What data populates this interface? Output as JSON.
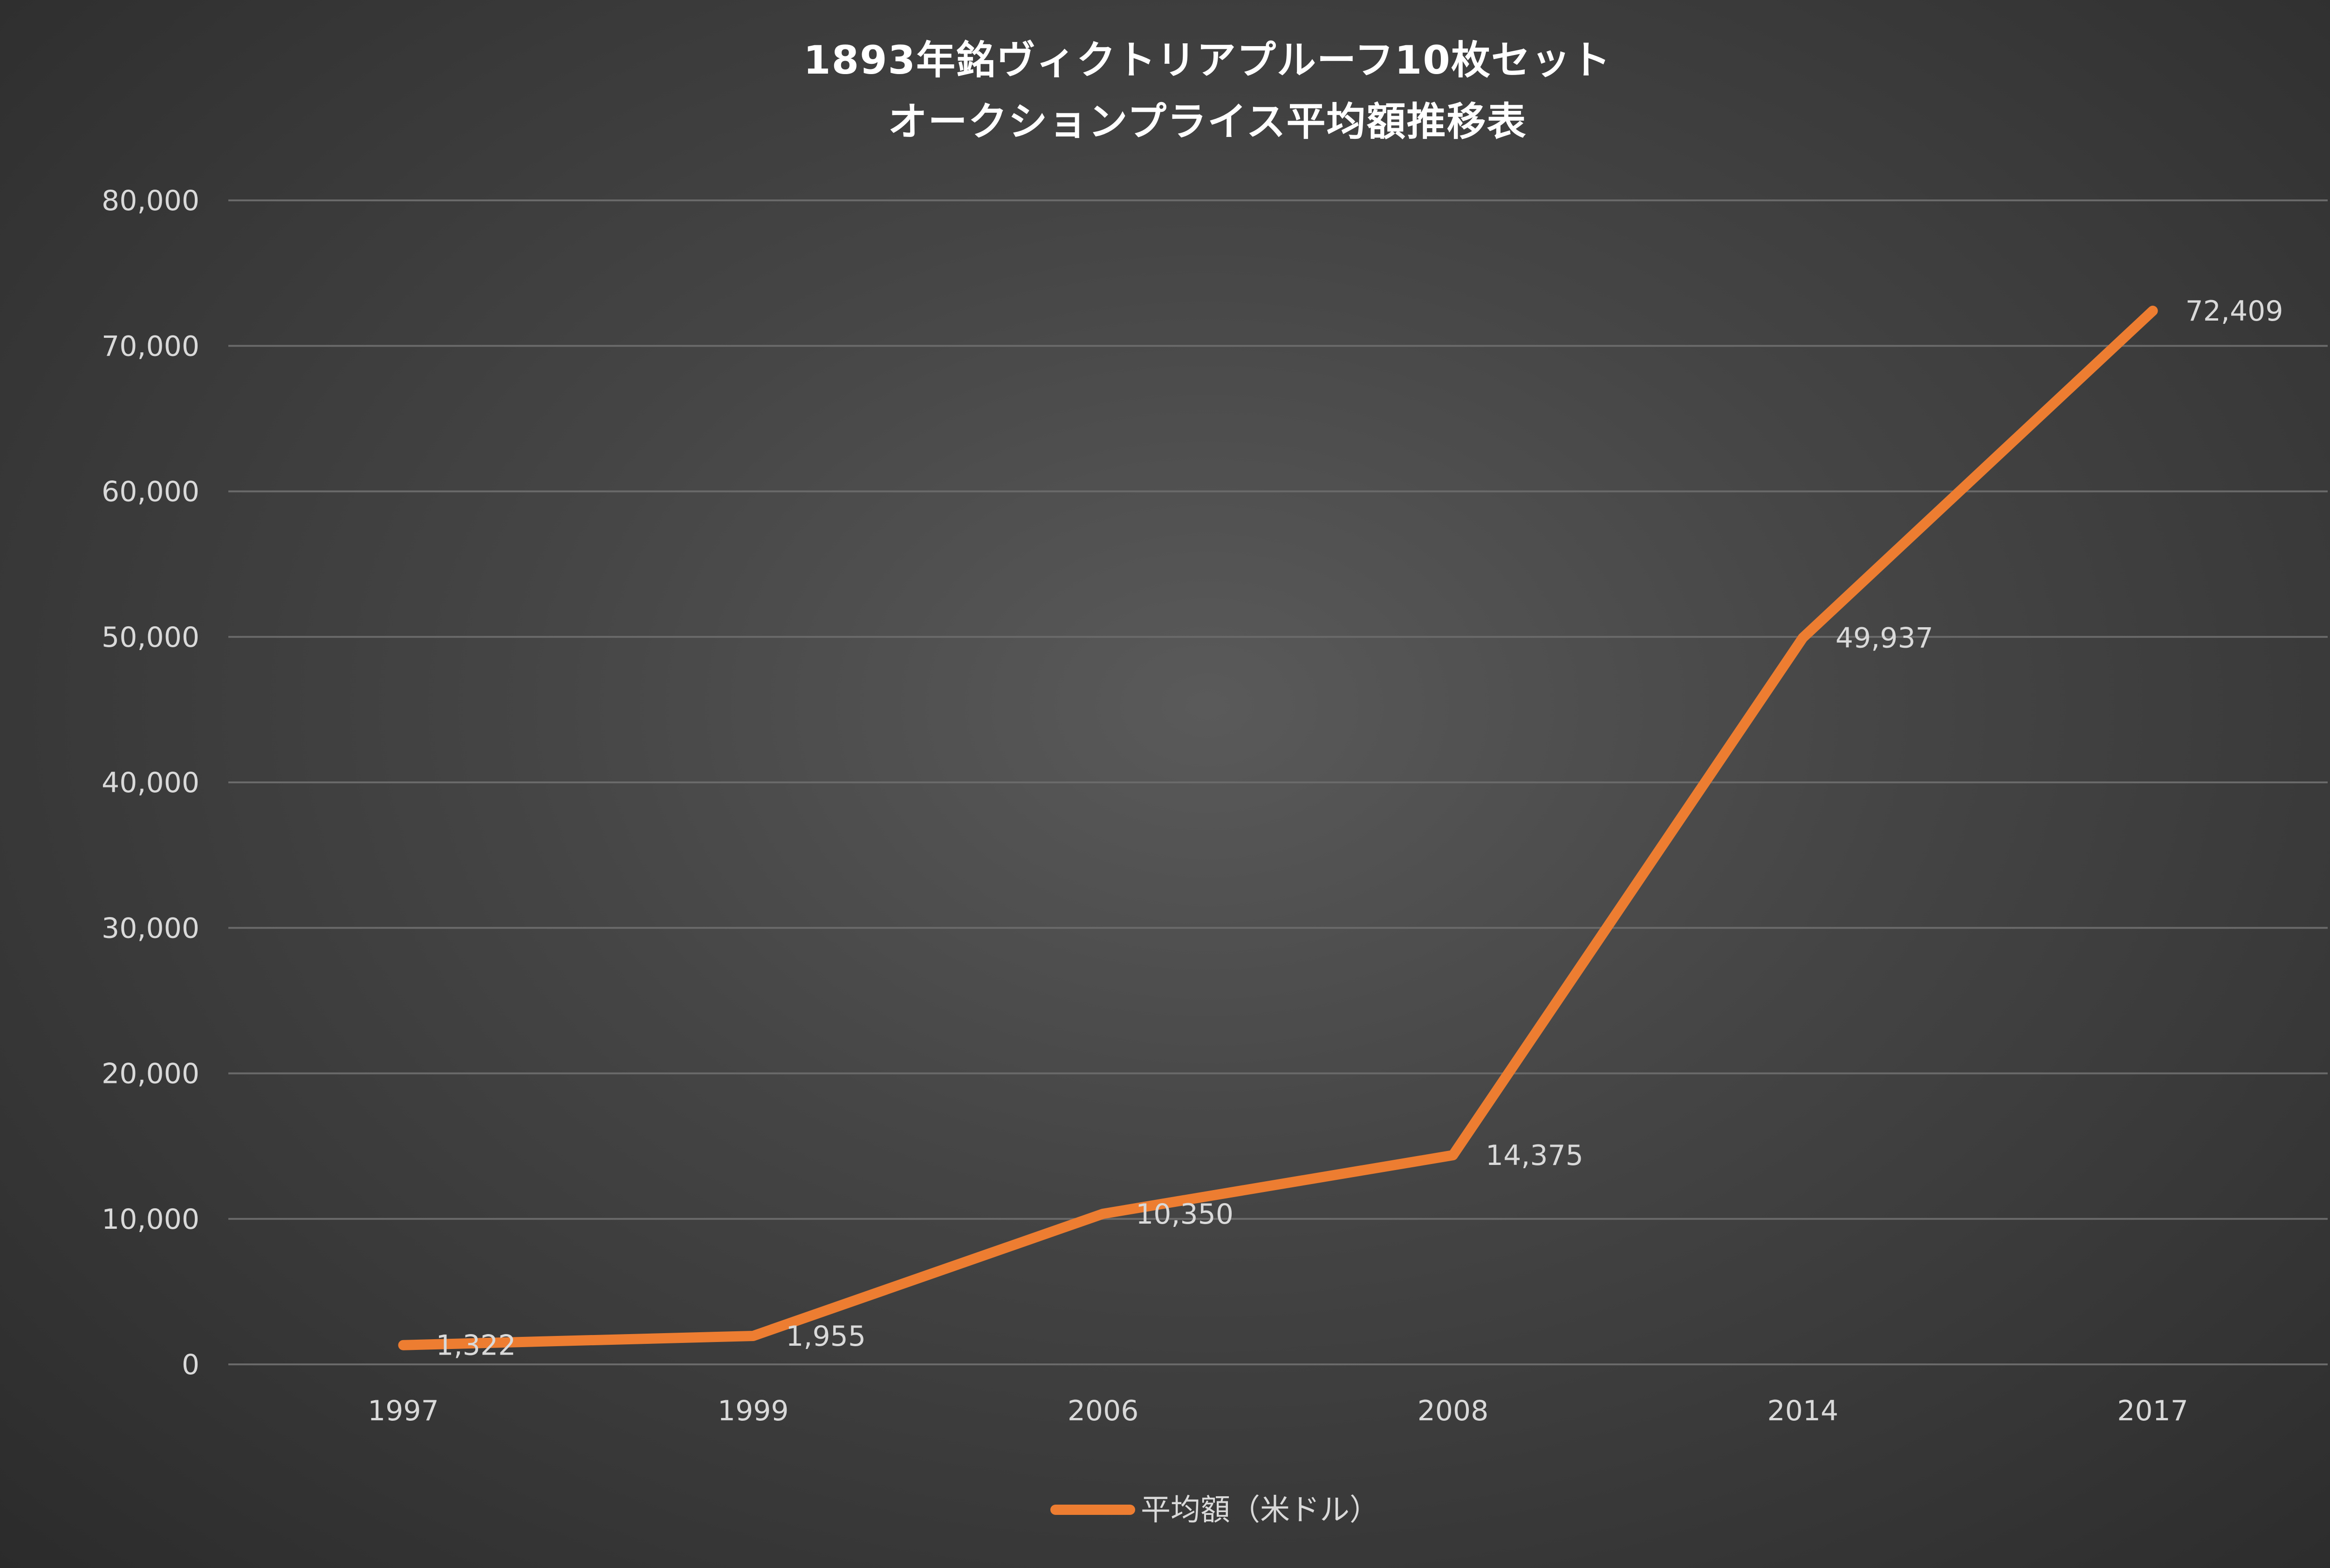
{
  "chart_data": {
    "type": "line",
    "title_lines": [
      "1893年銘ヴィクトリアプルーフ10枚セット",
      "オークションプライス平均額推移表"
    ],
    "categories": [
      "1997",
      "1999",
      "2006",
      "2008",
      "2014",
      "2017"
    ],
    "series": [
      {
        "name": "平均額（米ドル）",
        "values": [
          1322,
          1955,
          10350,
          14375,
          49937,
          72409
        ],
        "labels": [
          "1,322",
          "1,955",
          "10,350",
          "14,375",
          "49,937",
          "72,409"
        ],
        "color": "#ed7d31"
      }
    ],
    "y_ticks": [
      "0",
      "10,000",
      "20,000",
      "30,000",
      "40,000",
      "50,000",
      "60,000",
      "70,000",
      "80,000"
    ],
    "ylim": [
      0,
      80000
    ],
    "grid": true,
    "legend_position": "bottom",
    "background_color": "#444444",
    "text_color": "#d9d9d9"
  }
}
